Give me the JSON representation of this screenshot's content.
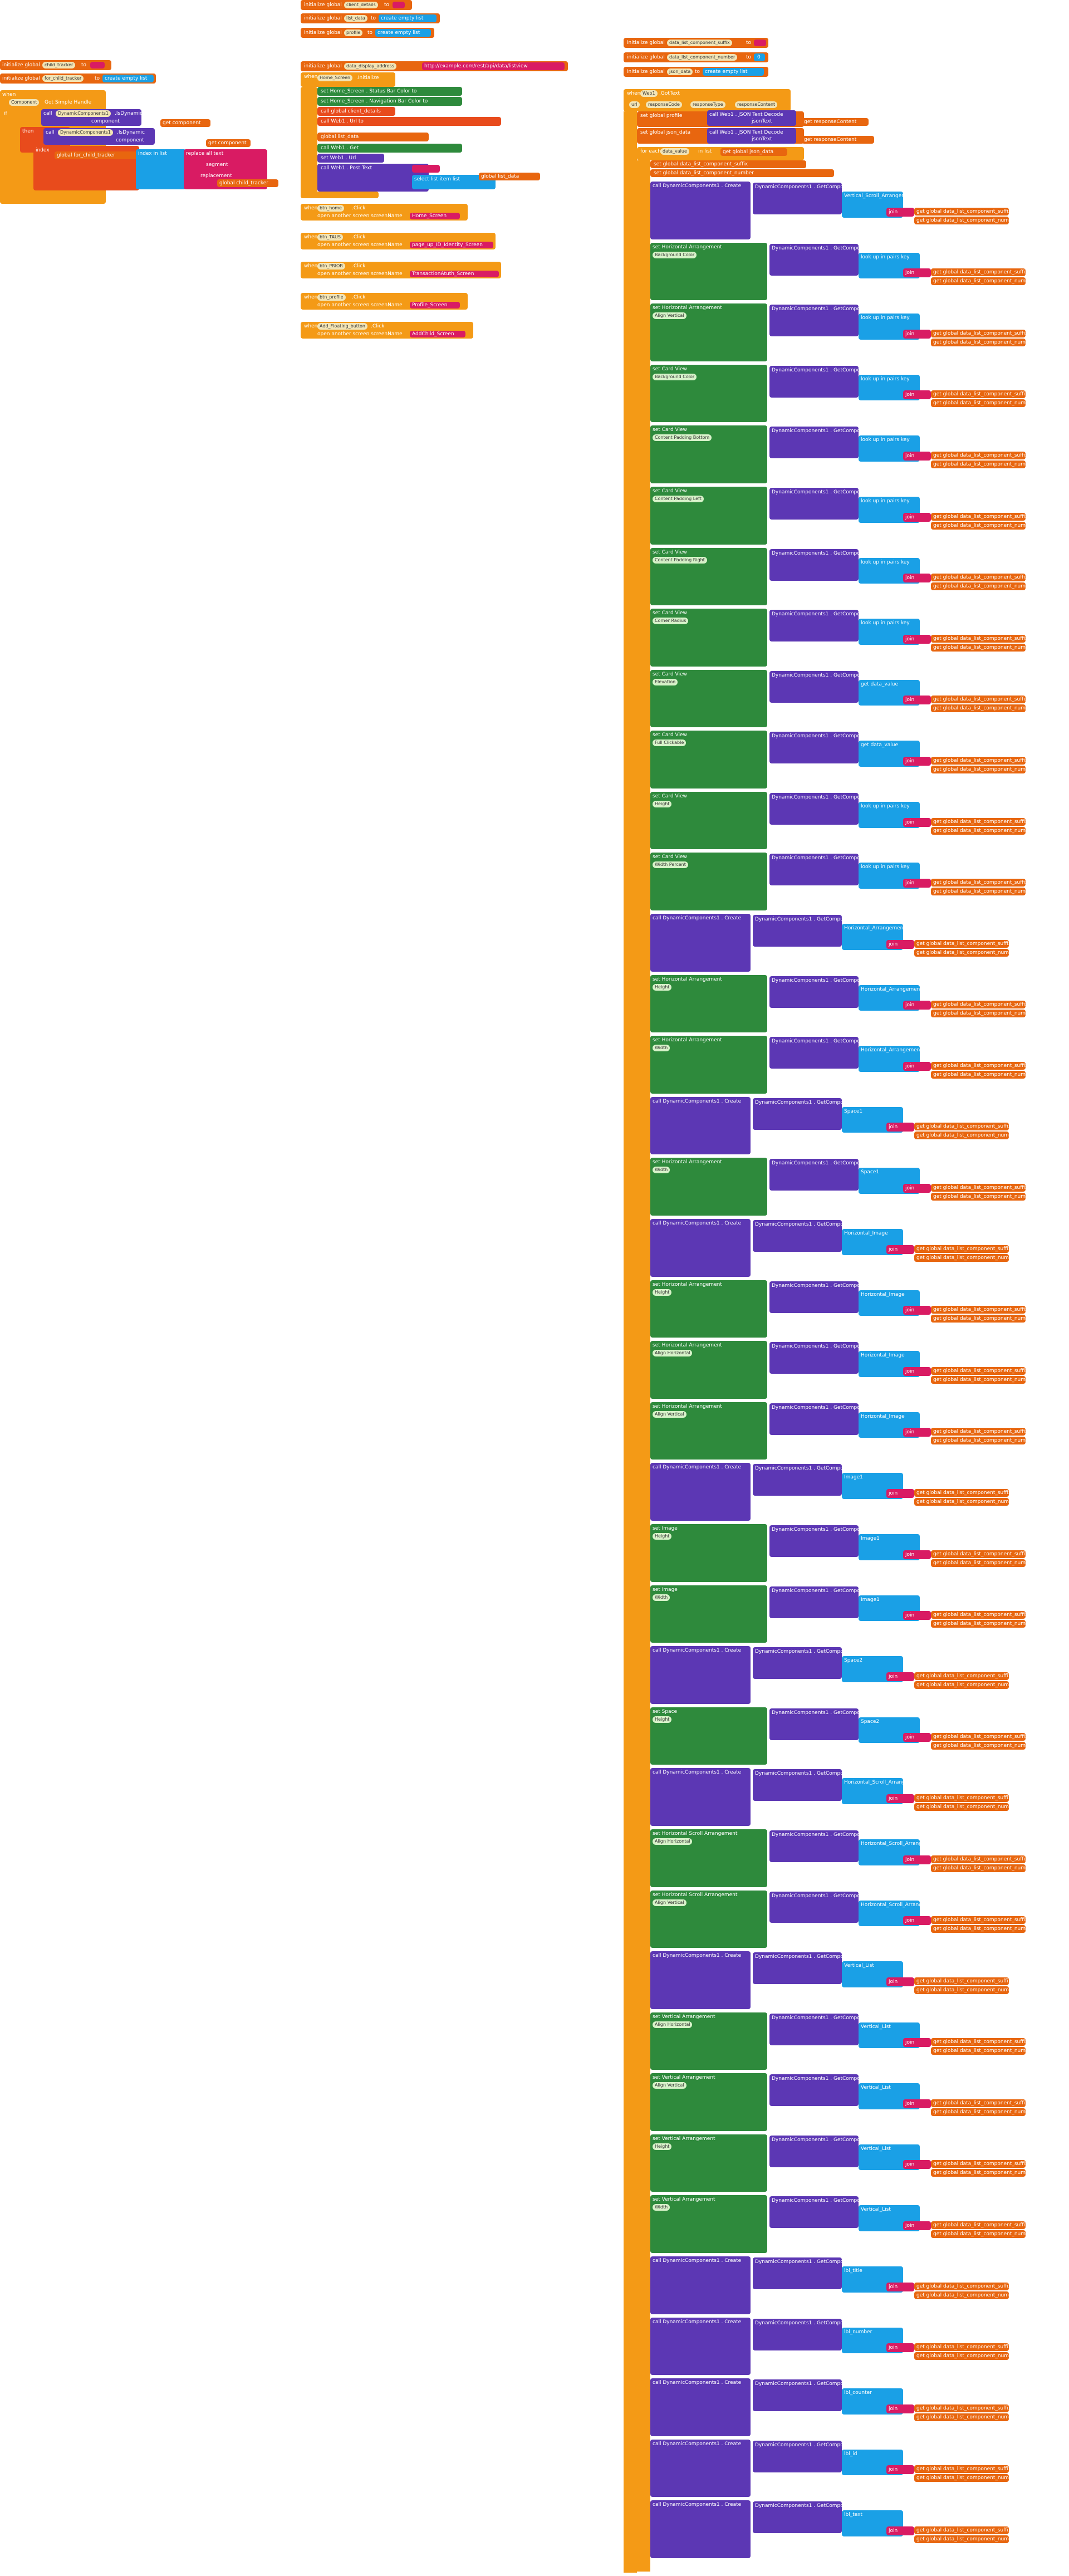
{
  "colors": {
    "control": "#f49a16",
    "variables": "#e8660f",
    "component": "#5c37b4",
    "any_component": "#2e8a3c",
    "dictionary": "#1aa0e6",
    "text": "#d91b63",
    "procedure": "#e84b1c"
  },
  "top_globals": [
    {
      "keyword": "initialize global",
      "name": "client_details",
      "to": "to",
      "value": ""
    },
    {
      "keyword": "initialize global",
      "name": "list_data",
      "to": "to",
      "value": "create empty list"
    },
    {
      "keyword": "initialize global",
      "name": "profile",
      "to": "to",
      "value": "create empty list"
    }
  ],
  "left_globals": [
    {
      "keyword": "initialize global",
      "name": "child_tracker",
      "to": "to",
      "value": ""
    },
    {
      "keyword": "initialize global",
      "name": "for_child_tracker",
      "to": "to",
      "value": "create empty list"
    }
  ],
  "left_event": {
    "header": "when",
    "component": "Component",
    "event": "Got Simple Handle",
    "call_label": "call",
    "dyn_component": "DynamicComponents1",
    "method": ".IsDynamic",
    "component_param": "component",
    "get_component": "get component",
    "do": "do",
    "if_label": "if",
    "then_label": "then",
    "index": "index",
    "get_child": "global for_child_tracker",
    "index_in_list": "index in list",
    "replace_all": "replace all text",
    "segment": "segment",
    "replacement": "replacement",
    "global_child_tracker": "global child_tracker"
  },
  "middle_globals": {
    "header": "initialize global",
    "name": "data_display_address",
    "value": "http://example.com/rest/api/data/listview"
  },
  "home_screen": {
    "header": "when",
    "component": "Home_Screen",
    "event": ".Initialize",
    "rows": [
      "set Home_Screen . Status Bar Color to",
      "set Home_Screen . Navigation Bar Color to",
      "call global client_details",
      "call Web1 . Url to",
      "global list_data",
      "call Web1 . Get",
      "set Web1 . Url",
      "call Web1 . Post Text",
      "select list item list",
      "global list_data"
    ]
  },
  "small_events": [
    {
      "when": "when",
      "component": "btn_home",
      "event": ".Click",
      "do": "open another screen screenName",
      "screen": "Home_Screen"
    },
    {
      "when": "when",
      "component": "btn_TAUS",
      "event": ".Click",
      "do": "open another screen screenName",
      "screen": "page_up_ID_Identity_Screen"
    },
    {
      "when": "when",
      "component": "btn_PRIOR",
      "event": ".Click",
      "do": "open another screen screenName",
      "screen": "TransactionAtuth_Screen"
    },
    {
      "when": "when",
      "component": "btn_profile",
      "event": ".Click",
      "do": "open another screen screenName",
      "screen": "Profile_Screen"
    },
    {
      "when": "when",
      "component": "Add_Floating_button",
      "event": ".Click",
      "do": "open another screen screenName",
      "screen": "AddChild_Screen"
    }
  ],
  "right_globals": [
    {
      "keyword": "initialize global",
      "name": "data_list_component_suffix",
      "to": "to",
      "value": ""
    },
    {
      "keyword": "initialize global",
      "name": "data_list_component_number",
      "to": "to",
      "value": "0"
    },
    {
      "keyword": "initialize global",
      "name": "json_data",
      "to": "to",
      "value": "create empty list"
    }
  ],
  "web_event": {
    "when": "when",
    "component": "Web1",
    "event": ".GotText",
    "params": [
      "url",
      "responseCode",
      "responseType",
      "responseContent"
    ],
    "do": "do",
    "set_global_profile": "set global profile",
    "json_decode": "call Web1 . JSON Text Decode",
    "json_text": "jsonText",
    "response_content": "get responseContent",
    "set_global_json": "set global json_data",
    "for_each": "for each",
    "data_value": "data_value",
    "in_list": "in list",
    "get_json": "get global json_data",
    "set_suffix": "set global data_list_component_suffix",
    "set_number": "set global data_list_component_number"
  },
  "loop_rows": [
    {
      "action": "call DynamicComponents1 . Create",
      "arg": "Vertical_Scroll_Arrangement1"
    },
    {
      "action": "set Horizontal Arrangement",
      "prop": "Background Color",
      "arg": "look up in pairs key"
    },
    {
      "action": "set Horizontal Arrangement",
      "prop": "Align Vertical",
      "arg": "look up in pairs key"
    },
    {
      "action": "set Card View",
      "prop": "Background Color",
      "arg": "look up in pairs key"
    },
    {
      "action": "set Card View",
      "prop": "Content Padding Bottom",
      "arg": "look up in pairs key"
    },
    {
      "action": "set Card View",
      "prop": "Content Padding Left",
      "arg": "look up in pairs key"
    },
    {
      "action": "set Card View",
      "prop": "Content Padding Right",
      "arg": "look up in pairs key"
    },
    {
      "action": "set Card View",
      "prop": "Corner Radius",
      "arg": "look up in pairs key"
    },
    {
      "action": "set Card View",
      "prop": "Elevation",
      "arg": "get data_value"
    },
    {
      "action": "set Card View",
      "prop": "Full Clickable",
      "arg": "get data_value"
    },
    {
      "action": "set Card View",
      "prop": "Height",
      "arg": "look up in pairs key"
    },
    {
      "action": "set Card View",
      "prop": "Width Percent",
      "arg": "look up in pairs key"
    },
    {
      "action": "call DynamicComponents1 . Create",
      "arg": "Horizontal_Arrangement"
    },
    {
      "action": "set Horizontal Arrangement",
      "prop": "Height",
      "arg": "Horizontal_Arrangement"
    },
    {
      "action": "set Horizontal Arrangement",
      "prop": "Width",
      "arg": "Horizontal_Arrangement"
    },
    {
      "action": "call DynamicComponents1 . Create",
      "arg": "Space1"
    },
    {
      "action": "set Horizontal Arrangement",
      "prop": "Width",
      "arg": "Space1"
    },
    {
      "action": "call DynamicComponents1 . Create",
      "arg": "Horizontal_Image"
    },
    {
      "action": "set Horizontal Arrangement",
      "prop": "Height",
      "arg": "Horizontal_Image"
    },
    {
      "action": "set Horizontal Arrangement",
      "prop": "Align Horizontal",
      "arg": "Horizontal_Image"
    },
    {
      "action": "set Horizontal Arrangement",
      "prop": "Align Vertical",
      "arg": "Horizontal_Image"
    },
    {
      "action": "call DynamicComponents1 . Create",
      "arg": "Image1"
    },
    {
      "action": "set Image",
      "prop": "Height",
      "arg": "Image1"
    },
    {
      "action": "set Image",
      "prop": "Width",
      "arg": "Image1"
    },
    {
      "action": "call DynamicComponents1 . Create",
      "arg": "Space2"
    },
    {
      "action": "set Space",
      "prop": "Height",
      "arg": "Space2"
    },
    {
      "action": "call DynamicComponents1 . Create",
      "arg": "Horizontal_Scroll_Arrangement"
    },
    {
      "action": "set Horizontal Scroll Arrangement",
      "prop": "Align Horizontal",
      "arg": "Horizontal_Scroll_Arrangement"
    },
    {
      "action": "set Horizontal Scroll Arrangement",
      "prop": "Align Vertical",
      "arg": "Horizontal_Scroll_Arrangement"
    },
    {
      "action": "call DynamicComponents1 . Create",
      "arg": "Vertical_List"
    },
    {
      "action": "set Vertical Arrangement",
      "prop": "Align Horizontal",
      "arg": "Vertical_List"
    },
    {
      "action": "set Vertical Arrangement",
      "prop": "Align Vertical",
      "arg": "Vertical_List"
    },
    {
      "action": "set Vertical Arrangement",
      "prop": "Height",
      "arg": "Vertical_List"
    },
    {
      "action": "set Vertical Arrangement",
      "prop": "Width",
      "arg": "Vertical_List"
    },
    {
      "action": "call DynamicComponents1 . Create",
      "arg": "lbl_title"
    },
    {
      "action": "call DynamicComponents1 . Create",
      "arg": "lbl_number"
    },
    {
      "action": "call DynamicComponents1 . Create",
      "arg": "lbl_counter"
    },
    {
      "action": "call DynamicComponents1 . Create",
      "arg": "lbl_id"
    },
    {
      "action": "call DynamicComponents1 . Create",
      "arg": "lbl_text"
    }
  ],
  "suffix_text": "get global data_list_component_suffix",
  "number_text": "get global data_list_component_number",
  "join_text": "join"
}
